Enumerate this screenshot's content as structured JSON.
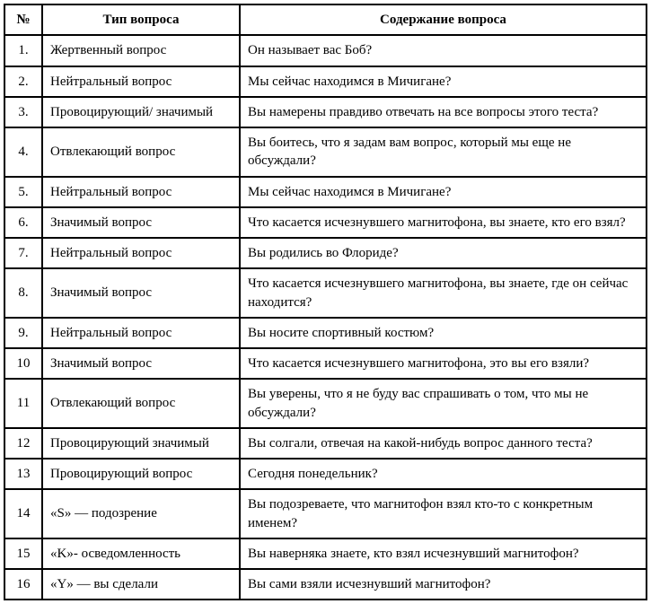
{
  "table": {
    "columns": [
      "№",
      "Тип вопроса",
      "Содержание вопроса"
    ],
    "rows": [
      {
        "num": "1.",
        "type": "Жертвенный вопрос",
        "content": "Он называет вас Боб?"
      },
      {
        "num": "2.",
        "type": "Нейтральный вопрос",
        "content": "Мы сейчас находимся в Мичигане?"
      },
      {
        "num": "3.",
        "type": "Провоцирующий/ значимый",
        "content": "Вы намерены правдиво отвечать на все вопросы этого теста?"
      },
      {
        "num": "4.",
        "type": "Отвлекающий вопрос",
        "content": "Вы боитесь, что я задам вам вопрос, который мы еще не обсуждали?"
      },
      {
        "num": "5.",
        "type": "Нейтральный вопрос",
        "content": "Мы сейчас находимся в Мичигане?"
      },
      {
        "num": "6.",
        "type": "Значимый вопрос",
        "content": "Что касается исчезнувшего магнитофона, вы знаете, кто его взял?"
      },
      {
        "num": "7.",
        "type": "Нейтральный вопрос",
        "content": "Вы родились во Флориде?"
      },
      {
        "num": "8.",
        "type": "Значимый вопрос",
        "content": "Что касается исчезнувшего магнитофона, вы знаете, где он сейчас находится?"
      },
      {
        "num": "9.",
        "type": "Нейтральный вопрос",
        "content": "Вы носите спортивный костюм?"
      },
      {
        "num": "10",
        "type": "Значимый вопрос",
        "content": "Что касается исчезнувшего магнитофона, это вы его взяли?"
      },
      {
        "num": "11",
        "type": "Отвлекающий вопрос",
        "content": "Вы уверены, что я не буду вас спрашивать о том, что мы не обсуждали?"
      },
      {
        "num": "12",
        "type": "Провоцирующий значимый",
        "content": "Вы солгали, отвечая на какой-нибудь вопрос данного теста?"
      },
      {
        "num": "13",
        "type": "Провоцирующий вопрос",
        "content": "Сегодня понедельник?"
      },
      {
        "num": "14",
        "type": "«S» — подозрение",
        "content": "Вы подозреваете, что магнитофон взял кто-то с конкретным именем?"
      },
      {
        "num": "15",
        "type": "«K»- осведомленность",
        "content": "Вы наверняка знаете, кто взял исчезнувший магнитофон?"
      },
      {
        "num": "16",
        "type": "«Y» — вы сделали",
        "content": "Вы сами взяли исчезнувший магнитофон?"
      }
    ],
    "border_color": "#000000",
    "background_color": "#ffffff",
    "font_family": "Times New Roman",
    "font_size": 15,
    "col_widths": {
      "num": 42,
      "type": 220
    }
  }
}
